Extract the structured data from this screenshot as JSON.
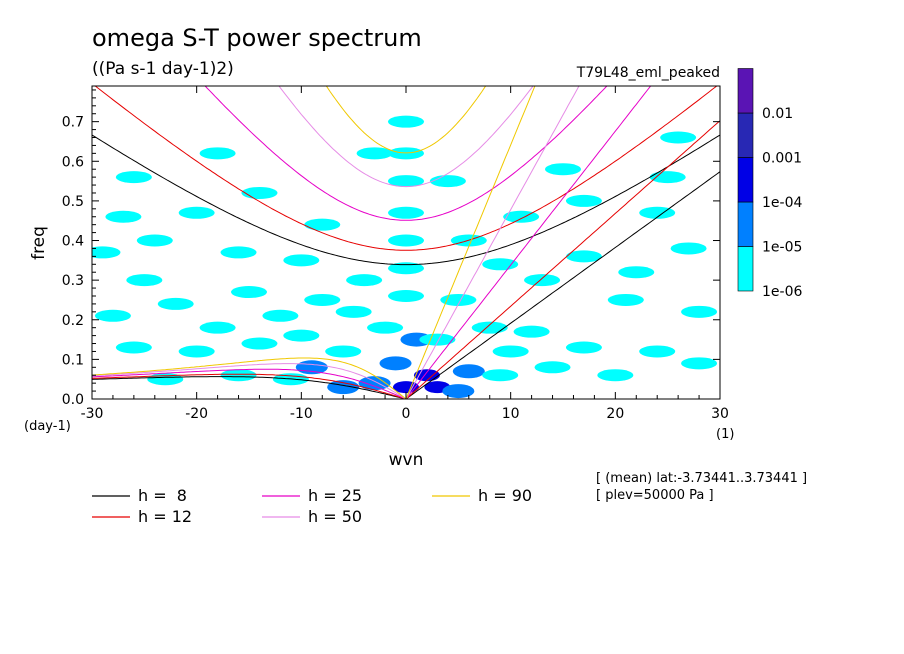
{
  "chart_data": {
    "type": "heatmap",
    "title": "omega S-T power spectrum",
    "subtitle": "((Pa s-1 day-1)2)",
    "run_label": "T79L48_eml_peaked",
    "xlabel": "wvn",
    "ylabel": "freq",
    "x_unit": "(1)",
    "y_unit": "(day-1)",
    "xlim": [
      -30,
      30
    ],
    "ylim": [
      0,
      0.79
    ],
    "x_ticks": [
      -30,
      -20,
      -10,
      0,
      10,
      20,
      30
    ],
    "x_tick_labels": [
      "-30",
      "-20",
      "-10",
      "0",
      "10",
      "20",
      "30"
    ],
    "y_ticks": [
      0,
      0.1,
      0.2,
      0.3,
      0.4,
      0.5,
      0.6,
      0.7
    ],
    "y_tick_labels": [
      "0.0",
      "0.1",
      "0.2",
      "0.3",
      "0.4",
      "0.5",
      "0.6",
      "0.7"
    ],
    "color_levels": [
      "1e-06",
      "1e-05",
      "1e-04",
      "0.001",
      "0.01"
    ],
    "color_fills": [
      "#00ffff",
      "#0080ff",
      "#0000e6",
      "#2828b4",
      "#5a14b4"
    ],
    "dispersion_curves": [
      {
        "label": "h =  8",
        "h": 8,
        "color": "#000000"
      },
      {
        "label": "h = 12",
        "h": 12,
        "color": "#e60000"
      },
      {
        "label": "h = 25",
        "h": 25,
        "color": "#e600c8"
      },
      {
        "label": "h = 50",
        "h": 50,
        "color": "#e68ce6"
      },
      {
        "label": "h = 90",
        "h": 90,
        "color": "#f0c800"
      }
    ],
    "spectral_blobs": [
      {
        "k": 0,
        "f": 0.03,
        "level": 2
      },
      {
        "k": 2,
        "f": 0.06,
        "level": 2
      },
      {
        "k": 3,
        "f": 0.03,
        "level": 2
      },
      {
        "k": -1,
        "f": 0.09,
        "level": 1
      },
      {
        "k": -3,
        "f": 0.04,
        "level": 1
      },
      {
        "k": -6,
        "f": 0.03,
        "level": 1
      },
      {
        "k": 5,
        "f": 0.02,
        "level": 1
      },
      {
        "k": 6,
        "f": 0.07,
        "level": 1
      },
      {
        "k": 1,
        "f": 0.15,
        "level": 1
      },
      {
        "k": -9,
        "f": 0.08,
        "level": 1
      },
      {
        "k": 0,
        "f": 0.62,
        "level": 0
      },
      {
        "k": 0,
        "f": 0.55,
        "level": 0
      },
      {
        "k": 0,
        "f": 0.47,
        "level": 0
      },
      {
        "k": 0,
        "f": 0.4,
        "level": 0
      },
      {
        "k": 0,
        "f": 0.33,
        "level": 0
      },
      {
        "k": 0,
        "f": 0.26,
        "level": 0
      },
      {
        "k": 0,
        "f": 0.7,
        "level": 0
      },
      {
        "k": -2,
        "f": 0.18,
        "level": 0
      },
      {
        "k": -5,
        "f": 0.22,
        "level": 0
      },
      {
        "k": -8,
        "f": 0.25,
        "level": 0
      },
      {
        "k": -12,
        "f": 0.21,
        "level": 0
      },
      {
        "k": -15,
        "f": 0.27,
        "level": 0
      },
      {
        "k": -18,
        "f": 0.18,
        "level": 0
      },
      {
        "k": -22,
        "f": 0.24,
        "level": 0
      },
      {
        "k": -25,
        "f": 0.3,
        "level": 0
      },
      {
        "k": -28,
        "f": 0.21,
        "level": 0
      },
      {
        "k": -26,
        "f": 0.13,
        "level": 0
      },
      {
        "k": -20,
        "f": 0.12,
        "level": 0
      },
      {
        "k": -14,
        "f": 0.14,
        "level": 0
      },
      {
        "k": -10,
        "f": 0.16,
        "level": 0
      },
      {
        "k": -6,
        "f": 0.12,
        "level": 0
      },
      {
        "k": -4,
        "f": 0.3,
        "level": 0
      },
      {
        "k": -10,
        "f": 0.35,
        "level": 0
      },
      {
        "k": -16,
        "f": 0.37,
        "level": 0
      },
      {
        "k": -24,
        "f": 0.4,
        "level": 0
      },
      {
        "k": -27,
        "f": 0.46,
        "level": 0
      },
      {
        "k": -20,
        "f": 0.47,
        "level": 0
      },
      {
        "k": -14,
        "f": 0.52,
        "level": 0
      },
      {
        "k": -8,
        "f": 0.44,
        "level": 0
      },
      {
        "k": -29,
        "f": 0.37,
        "level": 0
      },
      {
        "k": -26,
        "f": 0.56,
        "level": 0
      },
      {
        "k": -23,
        "f": 0.05,
        "level": 0
      },
      {
        "k": -16,
        "f": 0.06,
        "level": 0
      },
      {
        "k": -11,
        "f": 0.05,
        "level": 0
      },
      {
        "k": 3,
        "f": 0.15,
        "level": 0
      },
      {
        "k": 5,
        "f": 0.25,
        "level": 0
      },
      {
        "k": 8,
        "f": 0.18,
        "level": 0
      },
      {
        "k": 10,
        "f": 0.12,
        "level": 0
      },
      {
        "k": 12,
        "f": 0.17,
        "level": 0
      },
      {
        "k": 9,
        "f": 0.06,
        "level": 0
      },
      {
        "k": 14,
        "f": 0.08,
        "level": 0
      },
      {
        "k": 17,
        "f": 0.13,
        "level": 0
      },
      {
        "k": 20,
        "f": 0.06,
        "level": 0
      },
      {
        "k": 24,
        "f": 0.12,
        "level": 0
      },
      {
        "k": 28,
        "f": 0.09,
        "level": 0
      },
      {
        "k": 6,
        "f": 0.4,
        "level": 0
      },
      {
        "k": 9,
        "f": 0.34,
        "level": 0
      },
      {
        "k": 13,
        "f": 0.3,
        "level": 0
      },
      {
        "k": 17,
        "f": 0.36,
        "level": 0
      },
      {
        "k": 22,
        "f": 0.32,
        "level": 0
      },
      {
        "k": 27,
        "f": 0.38,
        "level": 0
      },
      {
        "k": 11,
        "f": 0.46,
        "level": 0
      },
      {
        "k": 17,
        "f": 0.5,
        "level": 0
      },
      {
        "k": 24,
        "f": 0.47,
        "level": 0
      },
      {
        "k": 15,
        "f": 0.58,
        "level": 0
      },
      {
        "k": 25,
        "f": 0.56,
        "level": 0
      },
      {
        "k": 21,
        "f": 0.25,
        "level": 0
      },
      {
        "k": 28,
        "f": 0.22,
        "level": 0
      },
      {
        "k": 4,
        "f": 0.55,
        "level": 0
      },
      {
        "k": -3,
        "f": 0.62,
        "level": 0
      },
      {
        "k": -18,
        "f": 0.62,
        "level": 0
      },
      {
        "k": 26,
        "f": 0.66,
        "level": 0
      }
    ]
  },
  "annotations": {
    "mean_range": "[ (mean) lat:-3.73441..3.73441 ]",
    "plev": "[ plev=50000 Pa ]"
  }
}
